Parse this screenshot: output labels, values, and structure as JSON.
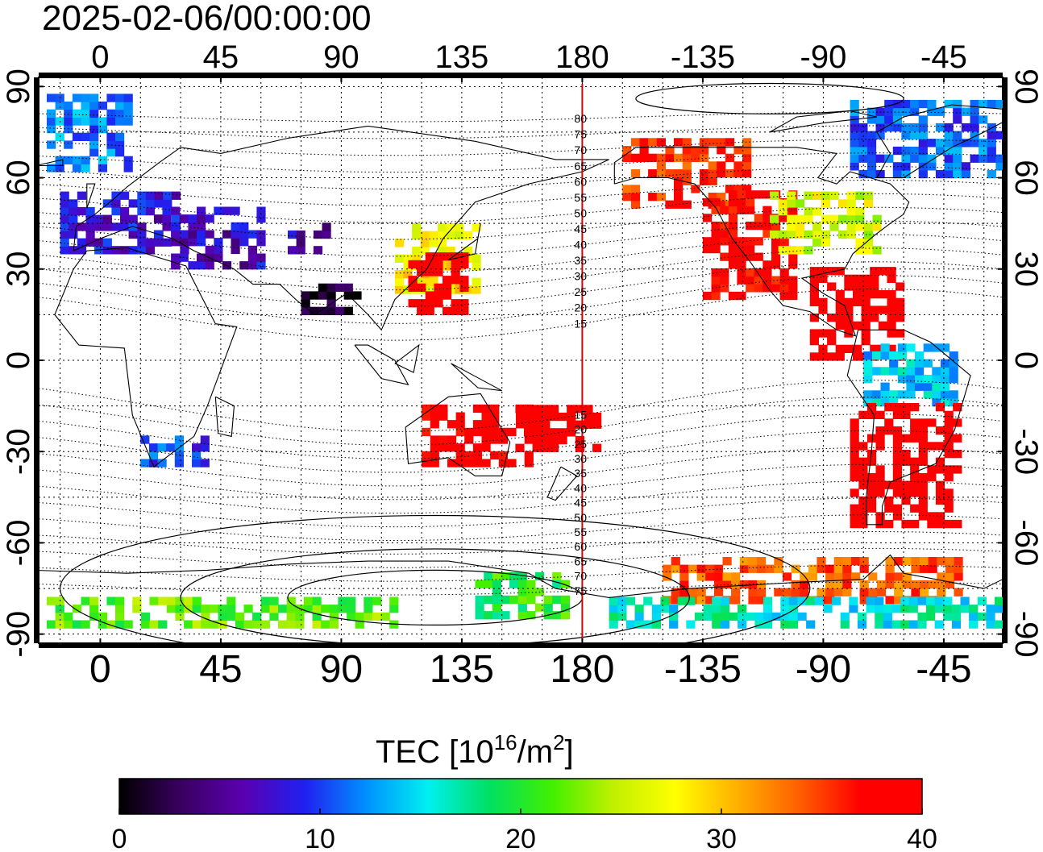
{
  "title": "2025-02-06/00:00:00",
  "map": {
    "lon_ticks": [
      "0",
      "45",
      "90",
      "135",
      "180",
      "-135",
      "-90",
      "-45"
    ],
    "lon_tick_values": [
      0,
      45,
      90,
      135,
      180,
      225,
      270,
      315
    ],
    "lat_ticks": [
      "90",
      "60",
      "30",
      "0",
      "-30",
      "-60",
      "-90"
    ],
    "lat_tick_values": [
      90,
      60,
      30,
      0,
      -30,
      -60,
      -90
    ],
    "lon_range": [
      -23,
      337
    ],
    "lat_range": [
      -93,
      93
    ],
    "grid": true,
    "meridian_marker_lon": 180,
    "meridian_marker_color": "#e00000",
    "magnetic_lat_labels": [
      "80",
      "75",
      "70",
      "65",
      "60",
      "55",
      "50",
      "45",
      "40",
      "35",
      "30",
      "25",
      "20",
      "15",
      "15",
      "20",
      "25",
      "30",
      "35",
      "40",
      "45",
      "50",
      "55",
      "60",
      "65",
      "70",
      "75"
    ],
    "magnetic_lat_label_values": [
      80,
      75,
      70,
      65,
      60,
      55,
      50,
      45,
      40,
      35,
      30,
      25,
      20,
      15,
      -15,
      -20,
      -25,
      -30,
      -35,
      -40,
      -45,
      -50,
      -55,
      -60,
      -65,
      -70,
      -75
    ]
  },
  "colorbar": {
    "label": "TEC  [10",
    "label_sup": "16",
    "label_unit": "/m",
    "label_sup2": "2",
    "label_end": "]",
    "ticks": [
      "0",
      "10",
      "20",
      "30",
      "40"
    ],
    "tick_values": [
      0,
      10,
      20,
      30,
      40
    ],
    "range": [
      0,
      40
    ],
    "colors": [
      "#000000",
      "#3a0060",
      "#5a00b0",
      "#2020f0",
      "#0090ff",
      "#00f0f0",
      "#00e060",
      "#40f000",
      "#c0f000",
      "#ffff00",
      "#ffb000",
      "#ff6000",
      "#ff0000",
      "#ff0000"
    ]
  },
  "tec_regions": [
    {
      "lon": [
        -20,
        10
      ],
      "lat": [
        62,
        87
      ],
      "tec": 12
    },
    {
      "lon": [
        -15,
        30
      ],
      "lat": [
        35,
        55
      ],
      "tec": 8
    },
    {
      "lon": [
        20,
        60
      ],
      "lat": [
        30,
        50
      ],
      "tec": 7
    },
    {
      "lon": [
        70,
        85
      ],
      "lat": [
        35,
        45
      ],
      "tec": 6
    },
    {
      "lon": [
        75,
        95
      ],
      "lat": [
        15,
        25
      ],
      "tec": 1
    },
    {
      "lon": [
        110,
        140
      ],
      "lat": [
        22,
        45
      ],
      "tec": 28
    },
    {
      "lon": [
        115,
        135
      ],
      "lat": [
        15,
        35
      ],
      "tec": 40
    },
    {
      "lon": [
        120,
        160
      ],
      "lat": [
        -35,
        -15
      ],
      "tec": 39
    },
    {
      "lon": [
        155,
        185
      ],
      "lat": [
        -30,
        -15
      ],
      "tec": 40
    },
    {
      "lon": [
        195,
        240
      ],
      "lat": [
        50,
        72
      ],
      "tec": 36
    },
    {
      "lon": [
        225,
        260
      ],
      "lat": [
        20,
        55
      ],
      "tec": 38
    },
    {
      "lon": [
        250,
        290
      ],
      "lat": [
        35,
        55
      ],
      "tec": 26
    },
    {
      "lon": [
        265,
        300
      ],
      "lat": [
        0,
        30
      ],
      "tec": 40
    },
    {
      "lon": [
        285,
        320
      ],
      "lat": [
        -15,
        5
      ],
      "tec": 14
    },
    {
      "lon": [
        280,
        320
      ],
      "lat": [
        -55,
        -15
      ],
      "tec": 40
    },
    {
      "lon": [
        280,
        335
      ],
      "lat": [
        60,
        85
      ],
      "tec": 11
    },
    {
      "lon": [
        15,
        40
      ],
      "lat": [
        -35,
        -25
      ],
      "tec": 10
    },
    {
      "lon": [
        -20,
        110
      ],
      "lat": [
        -88,
        -80
      ],
      "tec": 22
    },
    {
      "lon": [
        140,
        175
      ],
      "lat": [
        -85,
        -70
      ],
      "tec": 20
    },
    {
      "lon": [
        210,
        320
      ],
      "lat": [
        -80,
        -65
      ],
      "tec": 34
    },
    {
      "lon": [
        190,
        335
      ],
      "lat": [
        -88,
        -78
      ],
      "tec": 16
    }
  ]
}
